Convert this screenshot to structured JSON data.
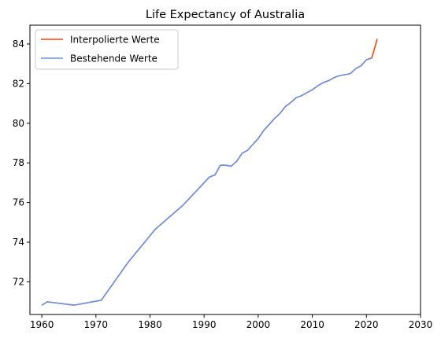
{
  "chart_data": {
    "type": "line",
    "title": "Life Expectancy of Australia",
    "xlabel": "",
    "ylabel": "",
    "xlim": [
      1957.8,
      2030
    ],
    "ylim": [
      70.35,
      84.95
    ],
    "xticks": [
      1960,
      1970,
      1980,
      1990,
      2000,
      2010,
      2020,
      2030
    ],
    "yticks": [
      72,
      74,
      76,
      78,
      80,
      82,
      84
    ],
    "grid": false,
    "legend_position": "top-left",
    "series": [
      {
        "name": "Interpolierte Werte",
        "color": "#ff4500",
        "x": [
          1960,
          1961,
          1966,
          1971,
          1976,
          1981,
          1986,
          1991,
          1992,
          1993,
          1994,
          1995,
          1996,
          1997,
          1998,
          1999,
          2000,
          2001,
          2002,
          2003,
          2004,
          2005,
          2006,
          2007,
          2008,
          2009,
          2010,
          2011,
          2012,
          2013,
          2014,
          2015,
          2016,
          2017,
          2018,
          2019,
          2020,
          2021,
          2022
        ],
        "y": [
          70.82,
          70.99,
          70.82,
          71.07,
          73.0,
          74.66,
          75.84,
          77.29,
          77.39,
          77.88,
          77.88,
          77.83,
          78.08,
          78.48,
          78.63,
          78.93,
          79.23,
          79.63,
          79.93,
          80.24,
          80.49,
          80.84,
          81.04,
          81.29,
          81.39,
          81.54,
          81.69,
          81.89,
          82.05,
          82.15,
          82.3,
          82.4,
          82.45,
          82.5,
          82.75,
          82.9,
          83.2,
          83.3,
          84.25
        ]
      },
      {
        "name": "Bestehende Werte",
        "color": "#6495ed",
        "x": [
          1960,
          1961,
          1966,
          1971,
          1976,
          1981,
          1986,
          1991,
          1992,
          1993,
          1994,
          1995,
          1996,
          1997,
          1998,
          1999,
          2000,
          2001,
          2002,
          2003,
          2004,
          2005,
          2006,
          2007,
          2008,
          2009,
          2010,
          2011,
          2012,
          2013,
          2014,
          2015,
          2016,
          2017,
          2018,
          2019,
          2020,
          2021
        ],
        "y": [
          70.82,
          70.99,
          70.82,
          71.07,
          73.0,
          74.66,
          75.84,
          77.29,
          77.39,
          77.88,
          77.88,
          77.83,
          78.08,
          78.48,
          78.63,
          78.93,
          79.23,
          79.63,
          79.93,
          80.24,
          80.49,
          80.84,
          81.04,
          81.29,
          81.39,
          81.54,
          81.69,
          81.89,
          82.05,
          82.15,
          82.3,
          82.4,
          82.45,
          82.5,
          82.75,
          82.9,
          83.2,
          83.3
        ]
      }
    ]
  }
}
